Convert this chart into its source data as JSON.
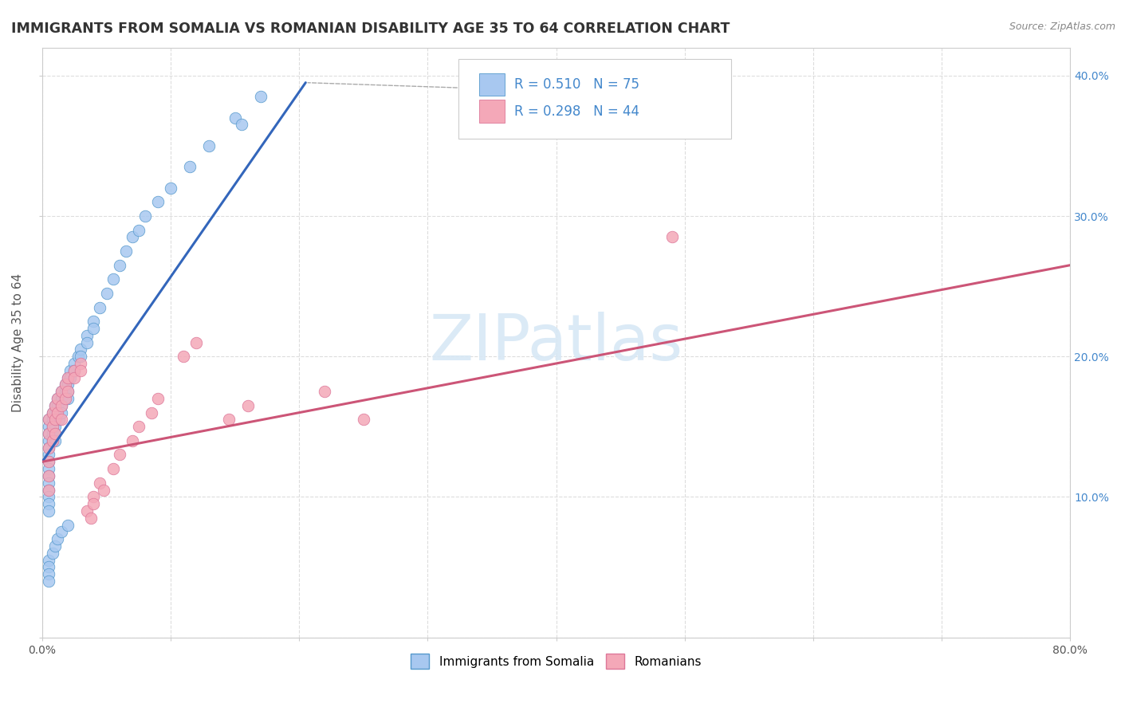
{
  "title": "IMMIGRANTS FROM SOMALIA VS ROMANIAN DISABILITY AGE 35 TO 64 CORRELATION CHART",
  "source": "Source: ZipAtlas.com",
  "ylabel": "Disability Age 35 to 64",
  "xlim": [
    0.0,
    0.8
  ],
  "ylim": [
    0.0,
    0.42
  ],
  "xticks": [
    0.0,
    0.1,
    0.2,
    0.3,
    0.4,
    0.5,
    0.6,
    0.7,
    0.8
  ],
  "yticks": [
    0.0,
    0.1,
    0.2,
    0.3,
    0.4
  ],
  "color_somalia": "#a8c8f0",
  "color_romania": "#f4a8b8",
  "edge_somalia": "#5599cc",
  "edge_romania": "#dd7799",
  "line_color_somalia": "#3366bb",
  "line_color_romania": "#cc5577",
  "R_somalia": 0.51,
  "N_somalia": 75,
  "R_romania": 0.298,
  "N_romania": 44,
  "watermark_text": "ZIPatlas",
  "watermark_color": "#d8e8f5",
  "background_color": "#ffffff",
  "grid_color": "#dddddd",
  "title_color": "#333333",
  "legend_somalia": "Immigrants from Somalia",
  "legend_romania": "Romanians",
  "somalia_line_x": [
    0.0,
    0.205
  ],
  "somalia_line_y": [
    0.125,
    0.395
  ],
  "romania_line_x": [
    0.0,
    0.8
  ],
  "romania_line_y": [
    0.125,
    0.265
  ],
  "somalia_x": [
    0.005,
    0.005,
    0.005,
    0.005,
    0.005,
    0.005,
    0.005,
    0.005,
    0.005,
    0.005,
    0.005,
    0.005,
    0.005,
    0.005,
    0.008,
    0.008,
    0.008,
    0.008,
    0.008,
    0.01,
    0.01,
    0.01,
    0.01,
    0.01,
    0.01,
    0.012,
    0.012,
    0.012,
    0.013,
    0.015,
    0.015,
    0.015,
    0.015,
    0.018,
    0.018,
    0.018,
    0.02,
    0.02,
    0.02,
    0.02,
    0.022,
    0.022,
    0.025,
    0.025,
    0.028,
    0.03,
    0.03,
    0.035,
    0.035,
    0.04,
    0.04,
    0.045,
    0.05,
    0.055,
    0.06,
    0.065,
    0.07,
    0.075,
    0.08,
    0.09,
    0.1,
    0.115,
    0.13,
    0.15,
    0.155,
    0.17,
    0.005,
    0.005,
    0.005,
    0.005,
    0.008,
    0.01,
    0.012,
    0.015,
    0.02
  ],
  "somalia_y": [
    0.155,
    0.15,
    0.145,
    0.14,
    0.135,
    0.13,
    0.125,
    0.12,
    0.115,
    0.11,
    0.105,
    0.1,
    0.095,
    0.09,
    0.16,
    0.155,
    0.15,
    0.145,
    0.14,
    0.165,
    0.16,
    0.155,
    0.15,
    0.145,
    0.14,
    0.17,
    0.165,
    0.16,
    0.155,
    0.175,
    0.17,
    0.165,
    0.16,
    0.18,
    0.175,
    0.17,
    0.185,
    0.18,
    0.175,
    0.17,
    0.19,
    0.185,
    0.195,
    0.19,
    0.2,
    0.205,
    0.2,
    0.215,
    0.21,
    0.225,
    0.22,
    0.235,
    0.245,
    0.255,
    0.265,
    0.275,
    0.285,
    0.29,
    0.3,
    0.31,
    0.32,
    0.335,
    0.35,
    0.37,
    0.365,
    0.385,
    0.055,
    0.05,
    0.045,
    0.04,
    0.06,
    0.065,
    0.07,
    0.075,
    0.08
  ],
  "romania_x": [
    0.005,
    0.005,
    0.005,
    0.005,
    0.005,
    0.005,
    0.008,
    0.008,
    0.008,
    0.01,
    0.01,
    0.01,
    0.012,
    0.012,
    0.015,
    0.015,
    0.015,
    0.018,
    0.018,
    0.02,
    0.02,
    0.025,
    0.025,
    0.03,
    0.03,
    0.035,
    0.038,
    0.04,
    0.04,
    0.045,
    0.048,
    0.055,
    0.06,
    0.07,
    0.075,
    0.085,
    0.09,
    0.11,
    0.12,
    0.145,
    0.16,
    0.22,
    0.25,
    0.49
  ],
  "romania_y": [
    0.155,
    0.145,
    0.135,
    0.125,
    0.115,
    0.105,
    0.16,
    0.15,
    0.14,
    0.165,
    0.155,
    0.145,
    0.17,
    0.16,
    0.175,
    0.165,
    0.155,
    0.18,
    0.17,
    0.185,
    0.175,
    0.19,
    0.185,
    0.195,
    0.19,
    0.09,
    0.085,
    0.1,
    0.095,
    0.11,
    0.105,
    0.12,
    0.13,
    0.14,
    0.15,
    0.16,
    0.17,
    0.2,
    0.21,
    0.155,
    0.165,
    0.175,
    0.155,
    0.285
  ]
}
